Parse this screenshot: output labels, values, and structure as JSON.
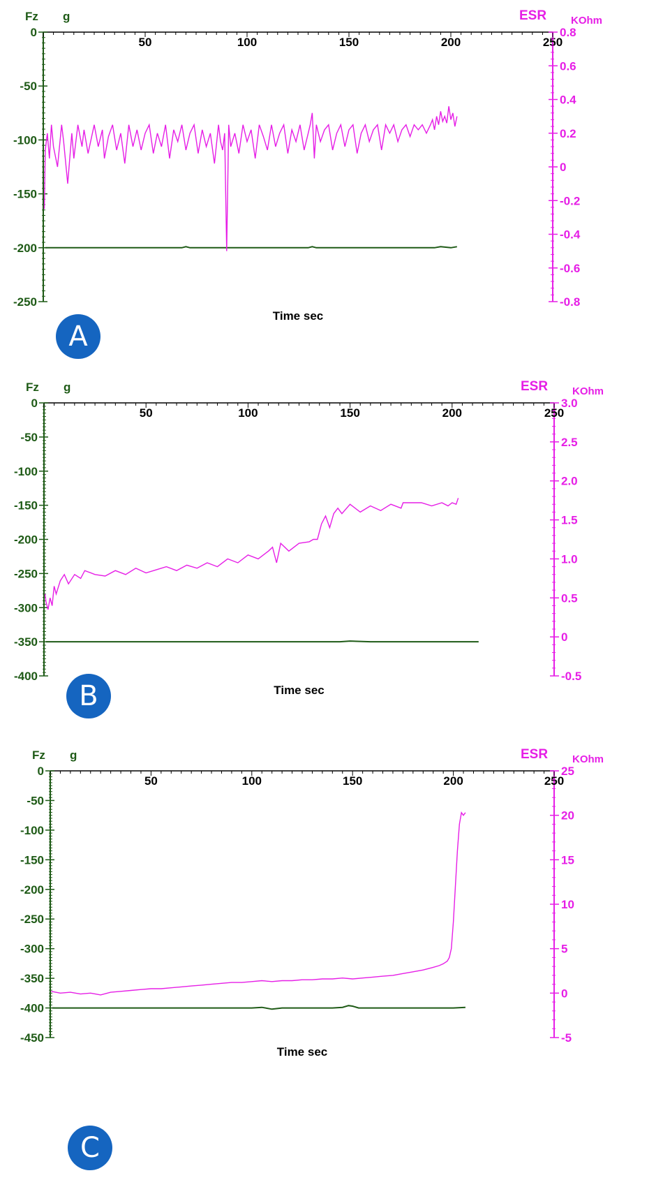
{
  "chart_data": [
    {
      "type": "line",
      "panel_label": "A",
      "xlabel": "Time  sec",
      "x_ticks": [
        50,
        100,
        150,
        200,
        250
      ],
      "xlim": [
        0,
        250
      ],
      "left_axis": {
        "name": "Fz",
        "unit": "g",
        "ylim": [
          -250,
          0
        ],
        "ticks": [
          0,
          -50,
          -100,
          -150,
          -200,
          -250
        ]
      },
      "right_axis": {
        "name": "ESR",
        "unit": "KOhm",
        "ylim": [
          -0.8,
          0.8
        ],
        "ticks": [
          "0.8",
          "0.6",
          "0.4",
          "0.2",
          "0",
          "-0.2",
          "-0.4",
          "-0.6",
          "-0.8"
        ]
      },
      "series": [
        {
          "name": "Fz",
          "axis": "left",
          "color": "#1e5a16",
          "x": [
            1,
            40,
            68,
            70,
            72,
            100,
            130,
            132,
            134,
            176,
            180,
            192,
            195,
            200,
            203
          ],
          "y": [
            -200,
            -200,
            -200,
            -199,
            -200,
            -200,
            -200,
            -199,
            -200,
            -200,
            -200,
            -200,
            -199,
            -200,
            -199
          ]
        },
        {
          "name": "ESR",
          "axis": "right",
          "color": "#e61ee6",
          "x": [
            0.5,
            1,
            2,
            3,
            4,
            5,
            7,
            9,
            10,
            12,
            14,
            15,
            17,
            19,
            20,
            22,
            25,
            27,
            29,
            30,
            32,
            34,
            36,
            38,
            40,
            42,
            44,
            46,
            48,
            50,
            52,
            54,
            56,
            58,
            60,
            62,
            64,
            66,
            68,
            70,
            72,
            74,
            76,
            78,
            80,
            82,
            84,
            86,
            87,
            88,
            89,
            90,
            91,
            92,
            94,
            96,
            98,
            100,
            102,
            104,
            106,
            108,
            110,
            112,
            114,
            116,
            118,
            120,
            122,
            124,
            126,
            128,
            130,
            131,
            132,
            133,
            134,
            136,
            138,
            140,
            142,
            144,
            146,
            148,
            150,
            152,
            154,
            156,
            158,
            160,
            162,
            164,
            166,
            168,
            170,
            172,
            174,
            176,
            178,
            180,
            182,
            184,
            186,
            188,
            190,
            191,
            192,
            193,
            194,
            195,
            196,
            197,
            198,
            199,
            200,
            201,
            202,
            203
          ],
          "y": [
            -0.25,
            0.1,
            0.2,
            0.05,
            0.25,
            0.12,
            0.0,
            0.25,
            0.15,
            -0.1,
            0.2,
            0.05,
            0.25,
            0.12,
            0.22,
            0.08,
            0.25,
            0.12,
            0.22,
            0.05,
            0.18,
            0.25,
            0.1,
            0.2,
            0.02,
            0.25,
            0.12,
            0.22,
            0.1,
            0.2,
            0.25,
            0.08,
            0.2,
            0.12,
            0.25,
            0.05,
            0.22,
            0.15,
            0.25,
            0.1,
            0.2,
            0.25,
            0.08,
            0.22,
            0.12,
            0.2,
            0.02,
            0.25,
            0.15,
            0.1,
            0.2,
            -0.5,
            0.25,
            0.12,
            0.2,
            0.08,
            0.25,
            0.15,
            0.22,
            0.05,
            0.25,
            0.18,
            0.1,
            0.25,
            0.12,
            0.2,
            0.25,
            0.08,
            0.22,
            0.15,
            0.25,
            0.1,
            0.2,
            0.25,
            0.32,
            0.05,
            0.25,
            0.15,
            0.22,
            0.25,
            0.1,
            0.2,
            0.25,
            0.12,
            0.22,
            0.25,
            0.08,
            0.2,
            0.25,
            0.15,
            0.22,
            0.25,
            0.1,
            0.25,
            0.2,
            0.25,
            0.15,
            0.22,
            0.25,
            0.18,
            0.25,
            0.22,
            0.25,
            0.2,
            0.25,
            0.28,
            0.22,
            0.3,
            0.25,
            0.33,
            0.27,
            0.3,
            0.26,
            0.36,
            0.28,
            0.32,
            0.24,
            0.3
          ]
        }
      ]
    },
    {
      "type": "line",
      "panel_label": "B",
      "xlabel": "Time  sec",
      "x_ticks": [
        50,
        100,
        150,
        200,
        250
      ],
      "xlim": [
        0,
        250
      ],
      "left_axis": {
        "name": "Fz",
        "unit": "g",
        "ylim": [
          -400,
          0
        ],
        "ticks": [
          0,
          -50,
          -100,
          -150,
          -200,
          -250,
          -300,
          -350,
          -400
        ]
      },
      "right_axis": {
        "name": "ESR",
        "unit": "KOhm",
        "ylim": [
          -0.5,
          3.0
        ],
        "ticks": [
          "3.0",
          "2.5",
          "2.0",
          "1.5",
          "1.0",
          "0.5",
          "0",
          "-0.5"
        ]
      },
      "series": [
        {
          "name": "Fz",
          "axis": "left",
          "color": "#1e5a16",
          "x": [
            1,
            50,
            100,
            145,
            150,
            160,
            180,
            213
          ],
          "y": [
            -350,
            -350,
            -350,
            -350,
            -349,
            -350,
            -350,
            -350
          ]
        },
        {
          "name": "ESR",
          "axis": "right",
          "color": "#e61ee6",
          "x": [
            0.5,
            1,
            2,
            3,
            4,
            5,
            6,
            8,
            10,
            12,
            15,
            18,
            20,
            25,
            30,
            35,
            40,
            45,
            50,
            55,
            60,
            65,
            70,
            75,
            80,
            85,
            90,
            95,
            100,
            105,
            110,
            112,
            114,
            116,
            120,
            125,
            130,
            132,
            134,
            136,
            138,
            140,
            142,
            144,
            146,
            150,
            155,
            160,
            165,
            170,
            175,
            176,
            180,
            185,
            190,
            195,
            198,
            200,
            202,
            203
          ],
          "y": [
            0.55,
            0.45,
            0.35,
            0.5,
            0.4,
            0.65,
            0.55,
            0.72,
            0.8,
            0.68,
            0.8,
            0.75,
            0.85,
            0.8,
            0.78,
            0.85,
            0.8,
            0.88,
            0.82,
            0.86,
            0.9,
            0.85,
            0.92,
            0.88,
            0.95,
            0.9,
            1.0,
            0.95,
            1.05,
            1.0,
            1.1,
            1.15,
            0.95,
            1.2,
            1.1,
            1.2,
            1.22,
            1.25,
            1.25,
            1.45,
            1.55,
            1.4,
            1.58,
            1.65,
            1.58,
            1.7,
            1.6,
            1.68,
            1.62,
            1.7,
            1.65,
            1.72,
            1.72,
            1.72,
            1.68,
            1.72,
            1.68,
            1.72,
            1.7,
            1.78
          ]
        }
      ]
    },
    {
      "type": "line",
      "panel_label": "C",
      "xlabel": "Time  sec",
      "x_ticks": [
        50,
        100,
        150,
        200,
        250
      ],
      "xlim": [
        0,
        250
      ],
      "left_axis": {
        "name": "Fz",
        "unit": "g",
        "ylim": [
          -450,
          0
        ],
        "ticks": [
          0,
          -50,
          -100,
          -150,
          -200,
          -250,
          -300,
          -350,
          -400,
          -450
        ]
      },
      "right_axis": {
        "name": "ESR",
        "unit": "KOhm",
        "ylim": [
          -5,
          25
        ],
        "ticks": [
          "25",
          "20",
          "15",
          "10",
          "5",
          "0",
          "-5"
        ]
      },
      "series": [
        {
          "name": "Fz",
          "axis": "left",
          "color": "#1e5a16",
          "x": [
            1,
            100,
            105,
            110,
            115,
            120,
            140,
            145,
            148,
            150,
            153,
            160,
            200,
            206
          ],
          "y": [
            -400,
            -400,
            -399,
            -402,
            -400,
            -400,
            -400,
            -399,
            -396,
            -397,
            -400,
            -400,
            -400,
            -399
          ]
        },
        {
          "name": "ESR",
          "axis": "right",
          "color": "#e61ee6",
          "x": [
            0.5,
            5,
            10,
            15,
            20,
            25,
            30,
            35,
            40,
            45,
            50,
            55,
            60,
            65,
            70,
            75,
            80,
            85,
            90,
            95,
            100,
            105,
            110,
            115,
            120,
            125,
            130,
            135,
            140,
            145,
            150,
            155,
            160,
            165,
            170,
            175,
            180,
            185,
            190,
            193,
            195,
            197,
            198,
            199,
            200,
            201,
            202,
            203,
            204,
            205,
            206
          ],
          "y": [
            0.2,
            0.0,
            0.1,
            -0.1,
            0.0,
            -0.2,
            0.1,
            0.2,
            0.3,
            0.4,
            0.5,
            0.5,
            0.6,
            0.7,
            0.8,
            0.9,
            1.0,
            1.1,
            1.2,
            1.2,
            1.3,
            1.4,
            1.3,
            1.4,
            1.4,
            1.5,
            1.5,
            1.6,
            1.6,
            1.7,
            1.6,
            1.7,
            1.8,
            1.9,
            2.0,
            2.2,
            2.4,
            2.6,
            2.9,
            3.1,
            3.3,
            3.6,
            4.0,
            5.0,
            8.0,
            12.0,
            16.0,
            19.0,
            20.3,
            20.0,
            20.3
          ]
        }
      ]
    }
  ]
}
